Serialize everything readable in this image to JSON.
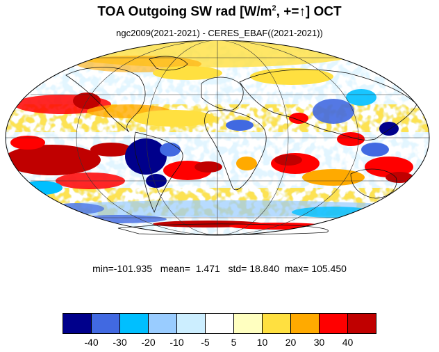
{
  "title": {
    "prefix": "TOA Outgoing SW rad [W/m",
    "superscript": "2",
    "suffix": ", +=↑] OCT"
  },
  "subtitle": "ngc2009(2021-2021) - CERES_EBAF((2021-2021))",
  "stats": {
    "min_label": "min=",
    "min": "-101.935",
    "mean_label": "mean=",
    "mean": "1.471",
    "std_label": "std=",
    "std": "18.840",
    "max_label": "max=",
    "max": "105.450"
  },
  "map": {
    "projection": "Mollweide",
    "field": "TOA outgoing shortwave radiation difference, October",
    "units": "W/m2"
  },
  "colorbar": {
    "colors": [
      "#00008b",
      "#4169e1",
      "#00bfff",
      "#99ccff",
      "#cceeff",
      "#ffffff",
      "#ffffc0",
      "#ffe040",
      "#ffaa00",
      "#ff0000",
      "#c00000"
    ],
    "labels": [
      "-40",
      "-30",
      "-20",
      "-10",
      "-5",
      "5",
      "10",
      "20",
      "30",
      "40"
    ]
  }
}
